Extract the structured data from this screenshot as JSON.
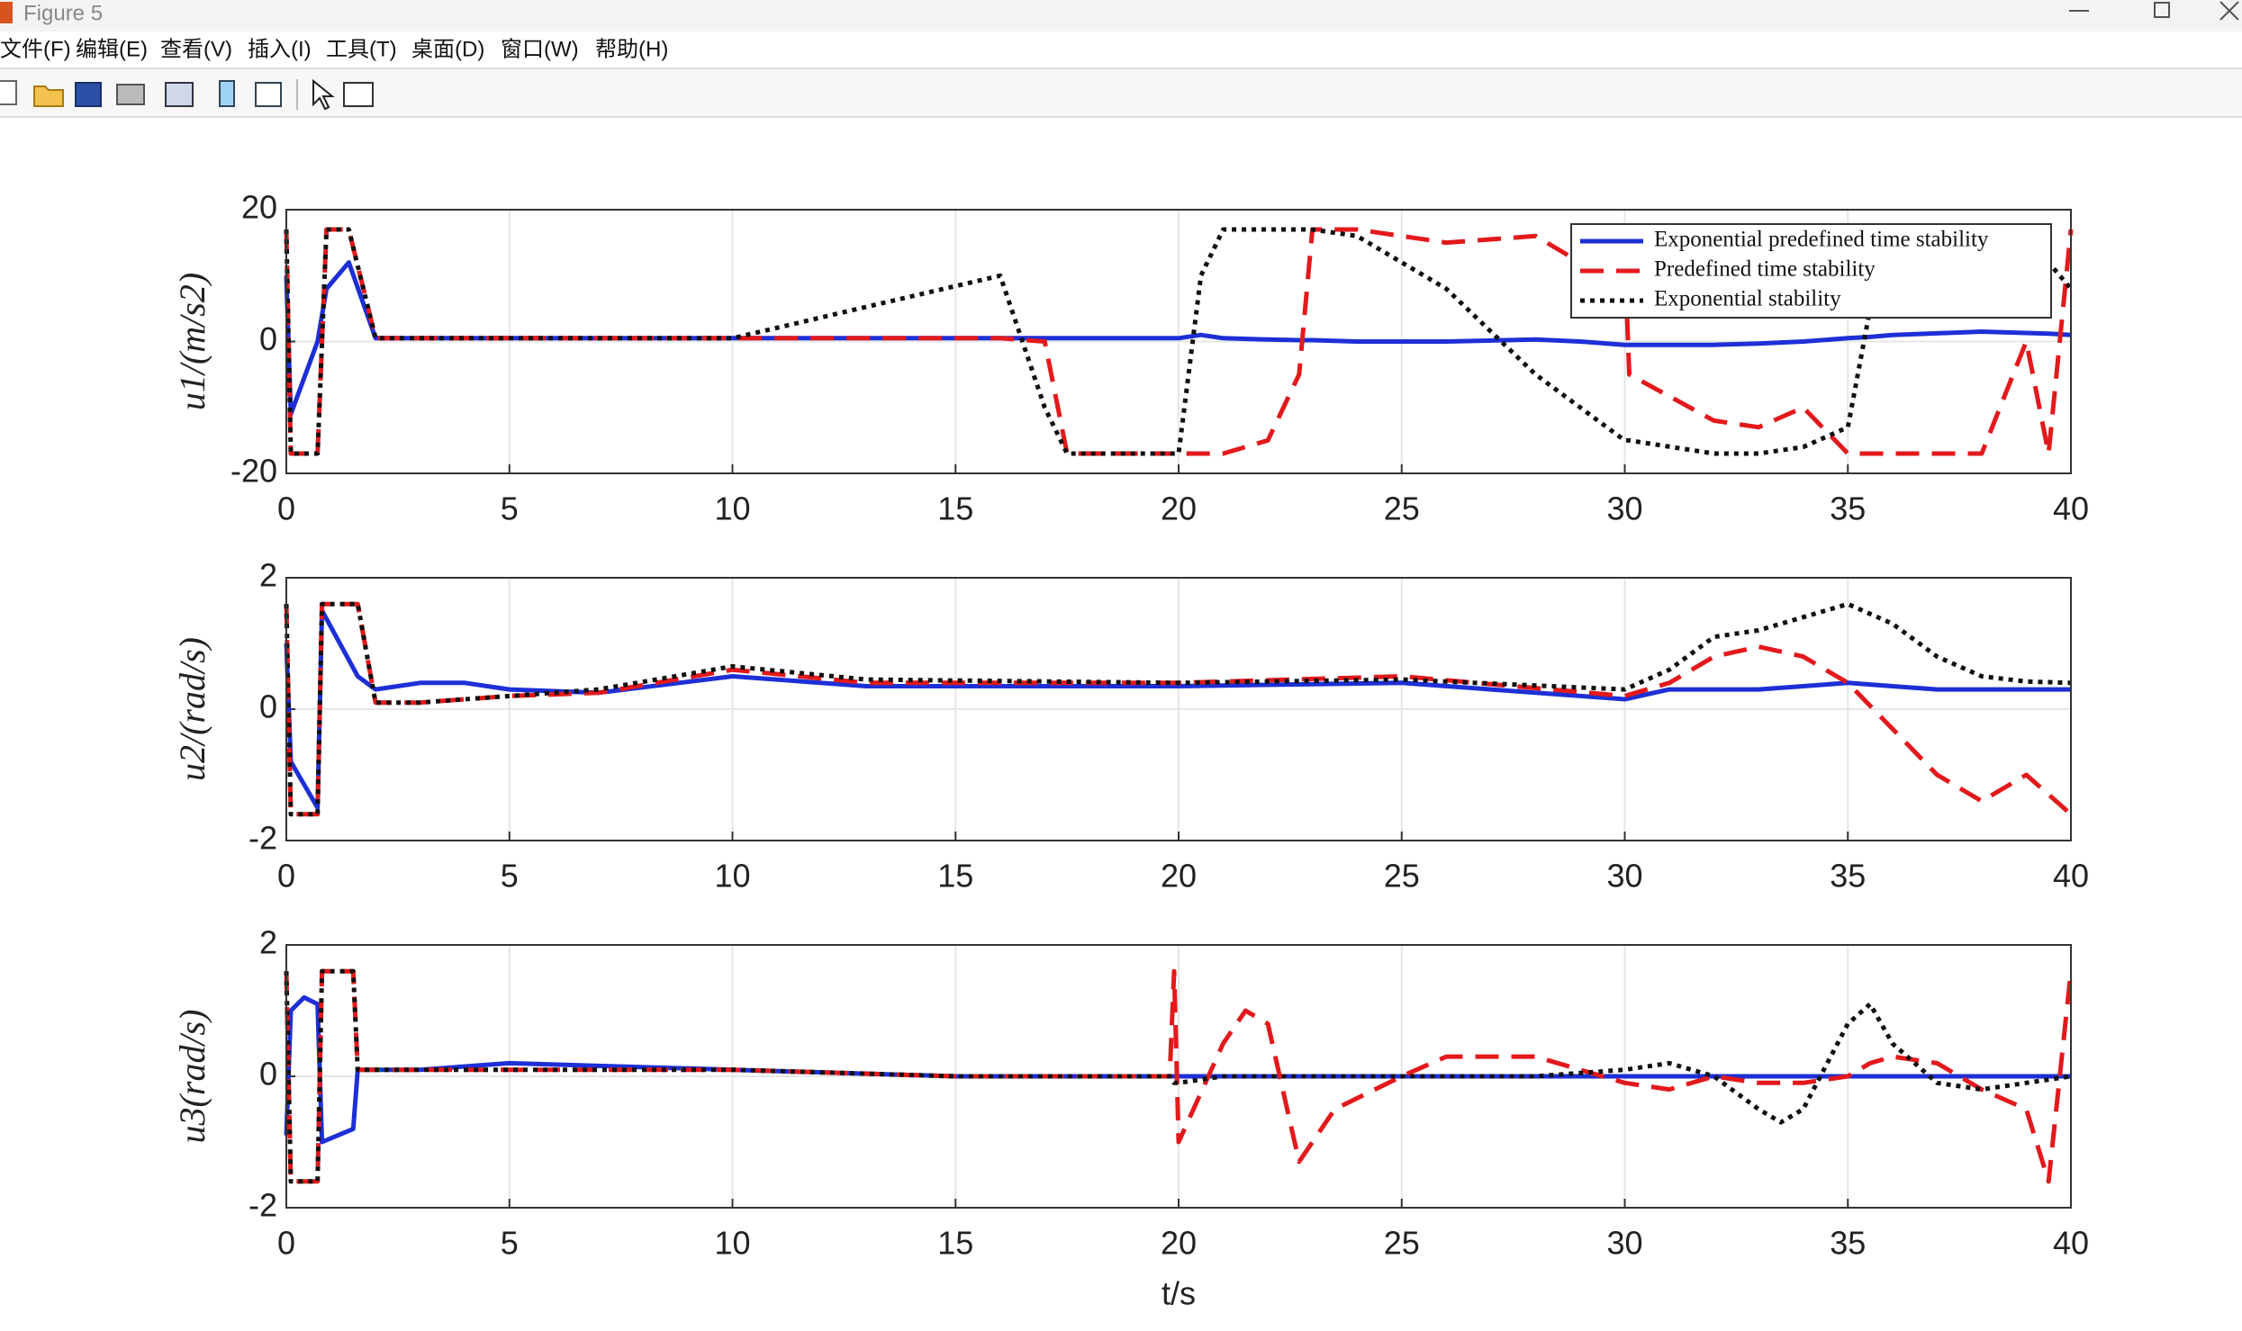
{
  "window": {
    "title": "Figure 5"
  },
  "menu": {
    "items": [
      "文件(F)",
      "编辑(E)",
      "查看(V)",
      "插入(I)",
      "工具(T)",
      "桌面(D)",
      "窗口(W)",
      "帮助(H)"
    ]
  },
  "chart_data": [
    {
      "type": "line",
      "ylabel": "u1/(m/s2)",
      "legend": "northeast",
      "grid": true,
      "xlim": [
        0,
        40
      ],
      "xticks": [
        0,
        5,
        10,
        15,
        20,
        25,
        30,
        35,
        40
      ],
      "ylim": [
        -20,
        20
      ],
      "yticks": [
        -20,
        0,
        20
      ],
      "x": [
        0,
        0.1,
        0.7,
        0.9,
        1.4,
        2,
        10,
        16,
        17,
        17.5,
        20,
        20.5,
        21,
        22,
        22.7,
        23,
        24,
        26,
        28,
        29,
        30,
        30.1,
        32,
        33,
        34,
        35,
        35.5,
        36,
        38,
        39,
        39.5,
        40
      ],
      "series": [
        {
          "name": "Exponential predefined time stability",
          "color": "#1d2fd6",
          "linestyle": "solid",
          "values": [
            10,
            -11,
            0,
            8,
            12,
            0.5,
            0.5,
            0.5,
            0.5,
            0.5,
            0.5,
            1,
            0.5,
            0.3,
            0.2,
            0.2,
            0,
            0,
            0.3,
            0,
            -0.5,
            -0.5,
            -0.5,
            -0.3,
            0,
            0.5,
            0.7,
            1,
            1.5,
            1.3,
            1.2,
            1
          ]
        },
        {
          "name": "Predefined time stability",
          "color": "#e3191c",
          "linestyle": "dashed",
          "values": [
            17,
            -17,
            -17,
            17,
            17,
            0.5,
            0.5,
            0.5,
            0,
            -17,
            -17,
            -17,
            -17,
            -15,
            -5,
            17,
            17,
            15,
            16,
            12,
            13,
            -5,
            -12,
            -13,
            -10,
            -17,
            -17,
            -17,
            -17,
            0,
            -17,
            17
          ]
        },
        {
          "name": "Exponential stability",
          "color": "#111111",
          "linestyle": "dotted",
          "values": [
            17,
            -17,
            -17,
            17,
            17,
            0.5,
            0.5,
            10,
            -10,
            -17,
            -17,
            10,
            17,
            17,
            17,
            17,
            16,
            8,
            -5,
            -10,
            -15,
            -15,
            -17,
            -17,
            -16,
            -13,
            5,
            17,
            17,
            15,
            12,
            8
          ]
        }
      ]
    },
    {
      "type": "line",
      "ylabel": "u2/(rad/s)",
      "grid": true,
      "xlim": [
        0,
        40
      ],
      "xticks": [
        0,
        5,
        10,
        15,
        20,
        25,
        30,
        35,
        40
      ],
      "ylim": [
        -2,
        2
      ],
      "yticks": [
        -2,
        0,
        2
      ],
      "x": [
        0,
        0.1,
        0.7,
        0.8,
        1.6,
        2,
        3,
        4,
        5,
        7,
        10,
        13,
        20,
        25,
        30,
        31,
        32,
        33,
        34,
        35,
        36,
        37,
        38,
        39,
        40
      ],
      "series": [
        {
          "color": "#1d2fd6",
          "linestyle": "solid",
          "values": [
            1,
            -0.8,
            -1.5,
            1.5,
            0.5,
            0.3,
            0.4,
            0.4,
            0.3,
            0.25,
            0.5,
            0.35,
            0.35,
            0.4,
            0.15,
            0.3,
            0.3,
            0.3,
            0.35,
            0.4,
            0.35,
            0.3,
            0.3,
            0.3,
            0.3
          ]
        },
        {
          "color": "#e3191c",
          "linestyle": "dashed",
          "values": [
            1.6,
            -1.6,
            -1.6,
            1.6,
            1.6,
            0.1,
            0.1,
            0.15,
            0.2,
            0.25,
            0.6,
            0.4,
            0.4,
            0.5,
            0.2,
            0.4,
            0.8,
            0.95,
            0.8,
            0.4,
            -0.3,
            -1,
            -1.4,
            -1,
            -1.6
          ]
        },
        {
          "color": "#111111",
          "linestyle": "dotted",
          "values": [
            1.6,
            -1.6,
            -1.6,
            1.6,
            1.6,
            0.1,
            0.1,
            0.15,
            0.2,
            0.3,
            0.65,
            0.45,
            0.4,
            0.45,
            0.3,
            0.6,
            1.1,
            1.2,
            1.4,
            1.6,
            1.3,
            0.8,
            0.5,
            0.42,
            0.4
          ]
        }
      ]
    },
    {
      "type": "line",
      "ylabel": "u3(rad/s)",
      "xlabel": "t/s",
      "grid": true,
      "xlim": [
        0,
        40
      ],
      "xticks": [
        0,
        5,
        10,
        15,
        20,
        25,
        30,
        35,
        40
      ],
      "ylim": [
        -2,
        2
      ],
      "yticks": [
        -2,
        0,
        2
      ],
      "x": [
        0,
        0.1,
        0.4,
        0.7,
        0.8,
        1.5,
        1.6,
        3,
        5,
        10,
        15,
        19.8,
        19.9,
        20,
        21,
        21.5,
        22,
        22.7,
        23.5,
        25,
        26,
        28,
        30,
        31,
        32,
        33,
        33.5,
        34,
        35,
        35.5,
        36,
        37,
        38,
        39,
        39.5,
        40
      ],
      "series": [
        {
          "color": "#1d2fd6",
          "linestyle": "solid",
          "values": [
            -0.9,
            1,
            1.2,
            1.1,
            -1,
            -0.8,
            0.1,
            0.1,
            0.2,
            0.1,
            0,
            0,
            0,
            0,
            0,
            0,
            0,
            0,
            0,
            0,
            0,
            0,
            0,
            0,
            0,
            0,
            0,
            0,
            0,
            0,
            0,
            0,
            0,
            0,
            0,
            0
          ]
        },
        {
          "color": "#e3191c",
          "linestyle": "dashed",
          "values": [
            1.6,
            -1.6,
            -1.6,
            -1.6,
            1.6,
            1.6,
            0.1,
            0.1,
            0.1,
            0.1,
            0,
            0,
            1.6,
            -1,
            0.5,
            1,
            0.8,
            -1.3,
            -0.5,
            0,
            0.3,
            0.3,
            -0.1,
            -0.2,
            0,
            -0.1,
            -0.1,
            -0.1,
            0,
            0.2,
            0.3,
            0.2,
            -0.2,
            -0.5,
            -1.6,
            1.6
          ]
        },
        {
          "color": "#111111",
          "linestyle": "dotted",
          "values": [
            1.6,
            -1.6,
            -1.6,
            -1.6,
            1.6,
            1.6,
            0.1,
            0.1,
            0.1,
            0.1,
            0,
            0,
            -0.1,
            -0.1,
            0,
            0,
            0,
            0,
            0,
            0,
            0,
            0,
            0.1,
            0.2,
            0,
            -0.5,
            -0.7,
            -0.5,
            0.8,
            1.1,
            0.5,
            -0.1,
            -0.2,
            -0.1,
            -0.05,
            0
          ]
        }
      ]
    }
  ]
}
